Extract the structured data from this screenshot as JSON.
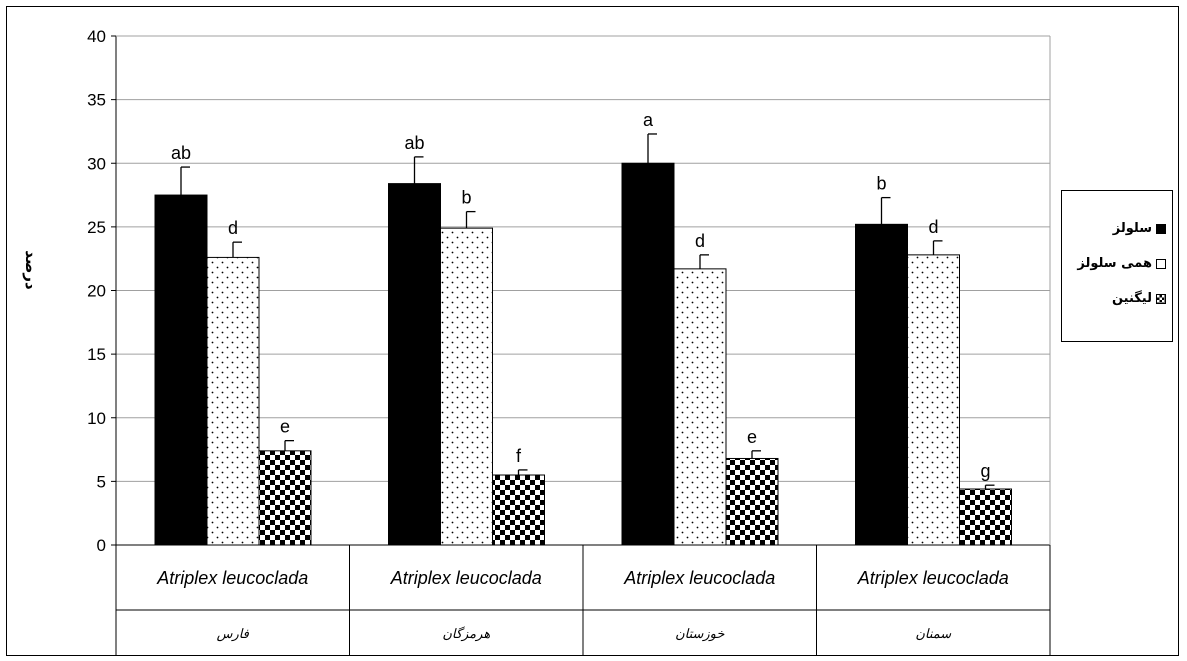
{
  "chart_data": {
    "type": "bar",
    "ylabel": "درصد",
    "ylim": [
      0,
      40
    ],
    "yticks": [
      0,
      5,
      10,
      15,
      20,
      25,
      30,
      35,
      40
    ],
    "grid": true,
    "legend_placement": "right",
    "categories": [
      {
        "species": "Atriplex leucoclada",
        "region": "فارس"
      },
      {
        "species": "Atriplex leucoclada",
        "region": "هرمزگان"
      },
      {
        "species": "Atriplex leucoclada",
        "region": "خوزستان"
      },
      {
        "species": "Atriplex leucoclada",
        "region": "سمنان"
      }
    ],
    "series": [
      {
        "name": "سلولز",
        "fill": "solid",
        "color": "#000000",
        "values": [
          27.5,
          28.4,
          30.0,
          25.2
        ],
        "errors": [
          2.2,
          2.1,
          2.3,
          2.1
        ],
        "labels": [
          "ab",
          "ab",
          "a",
          "b"
        ]
      },
      {
        "name": "همی سلولز",
        "fill": "dotted",
        "color": "#ffffff",
        "values": [
          22.6,
          24.9,
          21.7,
          22.8
        ],
        "errors": [
          1.2,
          1.3,
          1.1,
          1.1
        ],
        "labels": [
          "d",
          "b",
          "d",
          "d"
        ]
      },
      {
        "name": "لیگنین",
        "fill": "checker",
        "color": "#000000",
        "values": [
          7.4,
          5.5,
          6.8,
          4.4
        ],
        "errors": [
          0.8,
          0.4,
          0.6,
          0.3
        ],
        "labels": [
          "e",
          "f",
          "e",
          "g"
        ]
      }
    ]
  }
}
